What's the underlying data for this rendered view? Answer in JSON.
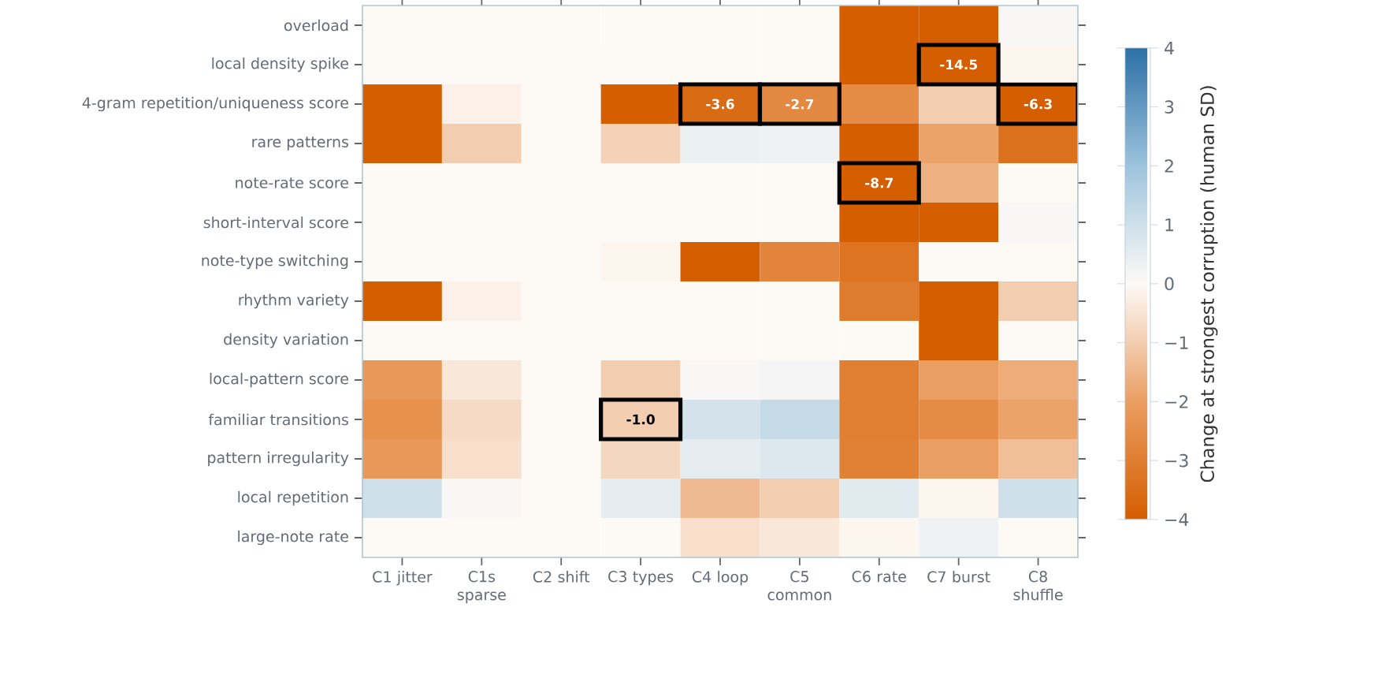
{
  "chart_data": {
    "type": "heatmap",
    "categories": [
      "C1 jitter",
      "C1s sparse",
      "C2 shift",
      "C3 types",
      "C4 loop",
      "C5 common",
      "C6 rate",
      "C7 burst",
      "C8 shuffle"
    ],
    "y_categories": [
      "overload",
      "local density spike",
      "4-gram repetition/uniqueness score",
      "rare patterns",
      "note-rate score",
      "short-interval score",
      "note-type switching",
      "rhythm variety",
      "density variation",
      "local-pattern score",
      "familiar transitions",
      "pattern irregularity",
      "local repetition",
      "large-note rate"
    ],
    "cells": [
      [
        0,
        0,
        0,
        0,
        0,
        0,
        -4,
        -4,
        0.1
      ],
      [
        0,
        0,
        0,
        0,
        0,
        0,
        -4,
        -14.5,
        -0.1
      ],
      [
        -4,
        -0.2,
        0,
        -4,
        -3.6,
        -2.7,
        -2.6,
        -1.0,
        -6.3
      ],
      [
        -4,
        -1.0,
        0,
        -0.9,
        0.4,
        0.3,
        -4,
        -1.9,
        -3.4
      ],
      [
        0,
        0,
        0,
        0,
        0,
        0,
        -8.7,
        -1.6,
        0
      ],
      [
        0,
        0,
        0,
        0,
        0,
        0,
        -4,
        -4,
        0.1
      ],
      [
        0,
        0,
        0,
        -0.1,
        -4,
        -2.8,
        -3.3,
        0,
        0
      ],
      [
        -4,
        -0.2,
        0,
        0,
        0,
        0,
        -3.1,
        -4,
        -1.0
      ],
      [
        0,
        0,
        0,
        0,
        0,
        0,
        0,
        -4,
        0
      ],
      [
        -2.2,
        -0.4,
        0,
        -1.0,
        0.1,
        0.2,
        -3.0,
        -2.0,
        -1.7
      ],
      [
        -2.4,
        -0.7,
        0,
        -1.0,
        0.9,
        1.2,
        -3.0,
        -2.6,
        -1.9
      ],
      [
        -2.2,
        -0.6,
        0,
        -0.8,
        0.5,
        0.7,
        -2.9,
        -2.0,
        -1.3
      ],
      [
        1.0,
        0.1,
        0,
        0.5,
        -1.4,
        -1.0,
        0.6,
        -0.1,
        1.0
      ],
      [
        0,
        0,
        0,
        0,
        -0.6,
        -0.4,
        -0.1,
        0.3,
        0
      ]
    ],
    "cell_labels": [
      [
        null,
        null,
        null,
        null,
        null,
        null,
        null,
        null,
        null
      ],
      [
        null,
        null,
        null,
        null,
        null,
        null,
        null,
        "-14.5",
        null
      ],
      [
        null,
        null,
        null,
        null,
        "-3.6",
        "-2.7",
        null,
        null,
        "-6.3"
      ],
      [
        null,
        null,
        null,
        null,
        null,
        null,
        null,
        null,
        null
      ],
      [
        null,
        null,
        null,
        null,
        null,
        null,
        "-8.7",
        null,
        null
      ],
      [
        null,
        null,
        null,
        null,
        null,
        null,
        null,
        null,
        null
      ],
      [
        null,
        null,
        null,
        null,
        null,
        null,
        null,
        null,
        null
      ],
      [
        null,
        null,
        null,
        null,
        null,
        null,
        null,
        null,
        null
      ],
      [
        null,
        null,
        null,
        null,
        null,
        null,
        null,
        null,
        null
      ],
      [
        null,
        null,
        null,
        null,
        null,
        null,
        null,
        null,
        null
      ],
      [
        null,
        null,
        null,
        "-1.0",
        null,
        null,
        null,
        null,
        null
      ],
      [
        null,
        null,
        null,
        null,
        null,
        null,
        null,
        null,
        null
      ],
      [
        null,
        null,
        null,
        null,
        null,
        null,
        null,
        null,
        null
      ],
      [
        null,
        null,
        null,
        null,
        null,
        null,
        null,
        null,
        null
      ]
    ],
    "clim": [
      -4,
      4
    ],
    "cticks": [
      {
        "value": -4,
        "label": "−4"
      },
      {
        "value": -3,
        "label": "−3"
      },
      {
        "value": -2,
        "label": "−2"
      },
      {
        "value": -1,
        "label": "−1"
      },
      {
        "value": 0,
        "label": "0"
      },
      {
        "value": 1,
        "label": "1"
      },
      {
        "value": 2,
        "label": "2"
      },
      {
        "value": 3,
        "label": "3"
      },
      {
        "value": 4,
        "label": "4"
      }
    ],
    "clabel": "Change at strongest corruption (human SD)"
  }
}
